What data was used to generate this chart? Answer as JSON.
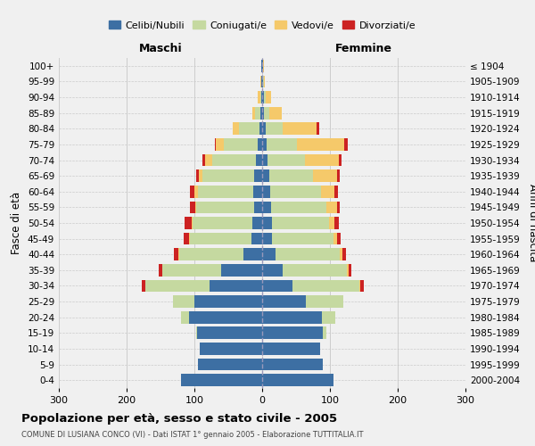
{
  "age_groups": [
    "0-4",
    "5-9",
    "10-14",
    "15-19",
    "20-24",
    "25-29",
    "30-34",
    "35-39",
    "40-44",
    "45-49",
    "50-54",
    "55-59",
    "60-64",
    "65-69",
    "70-74",
    "75-79",
    "80-84",
    "85-89",
    "90-94",
    "95-99",
    "100+"
  ],
  "birth_years": [
    "2000-2004",
    "1995-1999",
    "1990-1994",
    "1985-1989",
    "1980-1984",
    "1975-1979",
    "1970-1974",
    "1965-1969",
    "1960-1964",
    "1955-1959",
    "1950-1954",
    "1945-1949",
    "1940-1944",
    "1935-1939",
    "1930-1934",
    "1925-1929",
    "1920-1924",
    "1915-1919",
    "1910-1914",
    "1905-1909",
    "≤ 1904"
  ],
  "males": {
    "celibi": [
      120,
      95,
      92,
      96,
      108,
      100,
      78,
      60,
      28,
      16,
      14,
      12,
      13,
      12,
      9,
      6,
      4,
      3,
      1,
      1,
      1
    ],
    "coniugati": [
      0,
      0,
      0,
      2,
      12,
      32,
      95,
      88,
      95,
      90,
      88,
      85,
      82,
      76,
      65,
      50,
      30,
      7,
      2,
      0,
      0
    ],
    "vedovi": [
      0,
      0,
      0,
      0,
      0,
      0,
      0,
      0,
      1,
      2,
      2,
      2,
      5,
      5,
      10,
      12,
      10,
      5,
      3,
      1,
      0
    ],
    "divorziati": [
      0,
      0,
      0,
      0,
      0,
      0,
      4,
      4,
      6,
      8,
      10,
      8,
      6,
      4,
      4,
      2,
      0,
      0,
      0,
      0,
      0
    ]
  },
  "females": {
    "nubili": [
      105,
      90,
      85,
      90,
      88,
      65,
      45,
      30,
      20,
      15,
      14,
      13,
      12,
      10,
      8,
      6,
      5,
      3,
      2,
      1,
      1
    ],
    "coniugate": [
      0,
      0,
      0,
      5,
      20,
      55,
      98,
      95,
      95,
      90,
      85,
      82,
      75,
      65,
      55,
      45,
      25,
      8,
      3,
      1,
      0
    ],
    "vedove": [
      0,
      0,
      0,
      0,
      0,
      0,
      2,
      2,
      3,
      5,
      8,
      15,
      20,
      35,
      50,
      70,
      50,
      18,
      8,
      2,
      1
    ],
    "divorziate": [
      0,
      0,
      0,
      0,
      0,
      0,
      5,
      5,
      6,
      6,
      6,
      5,
      5,
      4,
      4,
      5,
      4,
      0,
      0,
      0,
      0
    ]
  },
  "colors": {
    "celibi": "#3d6fa3",
    "coniugati": "#c5d9a0",
    "vedovi": "#f5c96a",
    "divorziati": "#cc2222"
  },
  "xlim": 300,
  "title": "Popolazione per età, sesso e stato civile - 2005",
  "subtitle": "COMUNE DI LUSIANA CONCO (VI) - Dati ISTAT 1° gennaio 2005 - Elaborazione TUTTITALIA.IT",
  "xlabel_left": "Maschi",
  "xlabel_right": "Femmine",
  "ylabel_left": "Fasce di età",
  "ylabel_right": "Anni di nascita",
  "legend_labels": [
    "Celibi/Nubili",
    "Coniugati/e",
    "Vedovi/e",
    "Divorziati/e"
  ],
  "background_color": "#f0f0f0",
  "grid_color": "#cccccc"
}
